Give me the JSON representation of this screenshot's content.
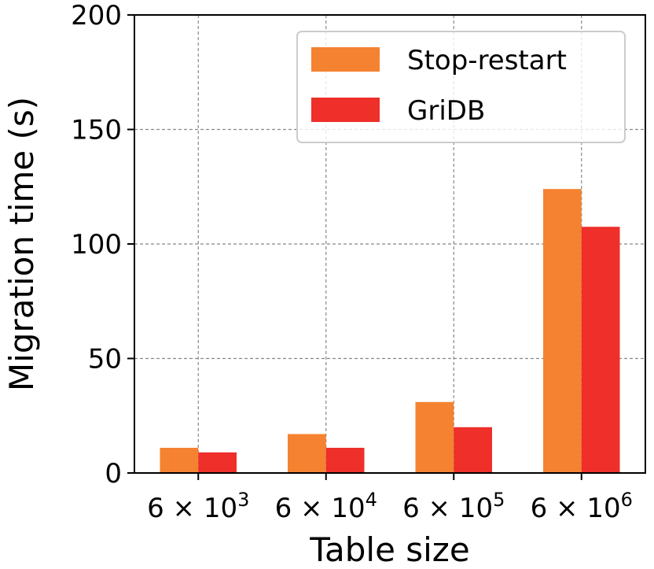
{
  "chart_data": {
    "type": "bar",
    "title": "",
    "xlabel": "Table size",
    "ylabel": "Migration time (s)",
    "categories": [
      {
        "base": "6 × 10",
        "exp": "3"
      },
      {
        "base": "6 × 10",
        "exp": "4"
      },
      {
        "base": "6 × 10",
        "exp": "5"
      },
      {
        "base": "6 × 10",
        "exp": "6"
      }
    ],
    "series": [
      {
        "name": "Stop-restart",
        "color": "#f58231",
        "values": [
          11,
          17,
          31,
          124
        ]
      },
      {
        "name": "GriDB",
        "color": "#ee2f2a",
        "values": [
          9,
          11,
          20,
          107.5
        ]
      }
    ],
    "ylim": [
      0,
      200
    ],
    "yticks": [
      "0",
      "50",
      "100",
      "150",
      "200"
    ],
    "ytick_values": [
      0,
      50,
      100,
      150,
      200
    ],
    "grid": true,
    "legend_position": "top-right"
  }
}
